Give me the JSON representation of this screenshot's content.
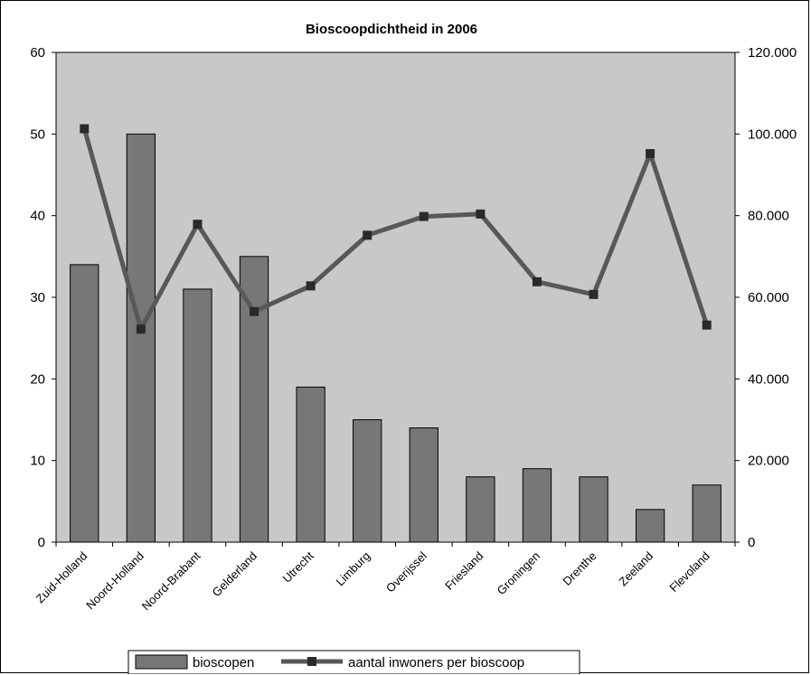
{
  "chart_data": {
    "type": "bar",
    "title": "Bioscoopdichtheid in 2006",
    "categories": [
      "Zuid-Holland",
      "Noord-Holland",
      "Noord-Brabant",
      "Gelderland",
      "Utrecht",
      "Limburg",
      "Overijssel",
      "Friesland",
      "Groningen",
      "Drenthe",
      "Zeeland",
      "Flevoland"
    ],
    "series": [
      {
        "name": "bioscopen",
        "type": "bar",
        "axis": "left",
        "values": [
          34,
          50,
          31,
          35,
          19,
          15,
          14,
          8,
          9,
          8,
          4,
          7
        ]
      },
      {
        "name": "aantal inwoners per bioscoop",
        "type": "line",
        "axis": "right",
        "values": [
          101300,
          52200,
          77900,
          56500,
          62800,
          75200,
          79800,
          80400,
          63800,
          60700,
          95200,
          53200
        ]
      }
    ],
    "y_left": {
      "min": 0,
      "max": 60,
      "ticks": [
        "0",
        "10",
        "20",
        "30",
        "40",
        "50",
        "60"
      ]
    },
    "y_right": {
      "min": 0,
      "max": 120000,
      "ticks": [
        "0",
        "20.000",
        "40.000",
        "60.000",
        "80.000",
        "100.000",
        "120.000"
      ]
    },
    "grid": false,
    "legend": "bottom",
    "colors": {
      "plot_bg": "#c8c8ca",
      "bar": "#77777a",
      "line": "#58585a",
      "marker": "#2a2a2a"
    }
  }
}
